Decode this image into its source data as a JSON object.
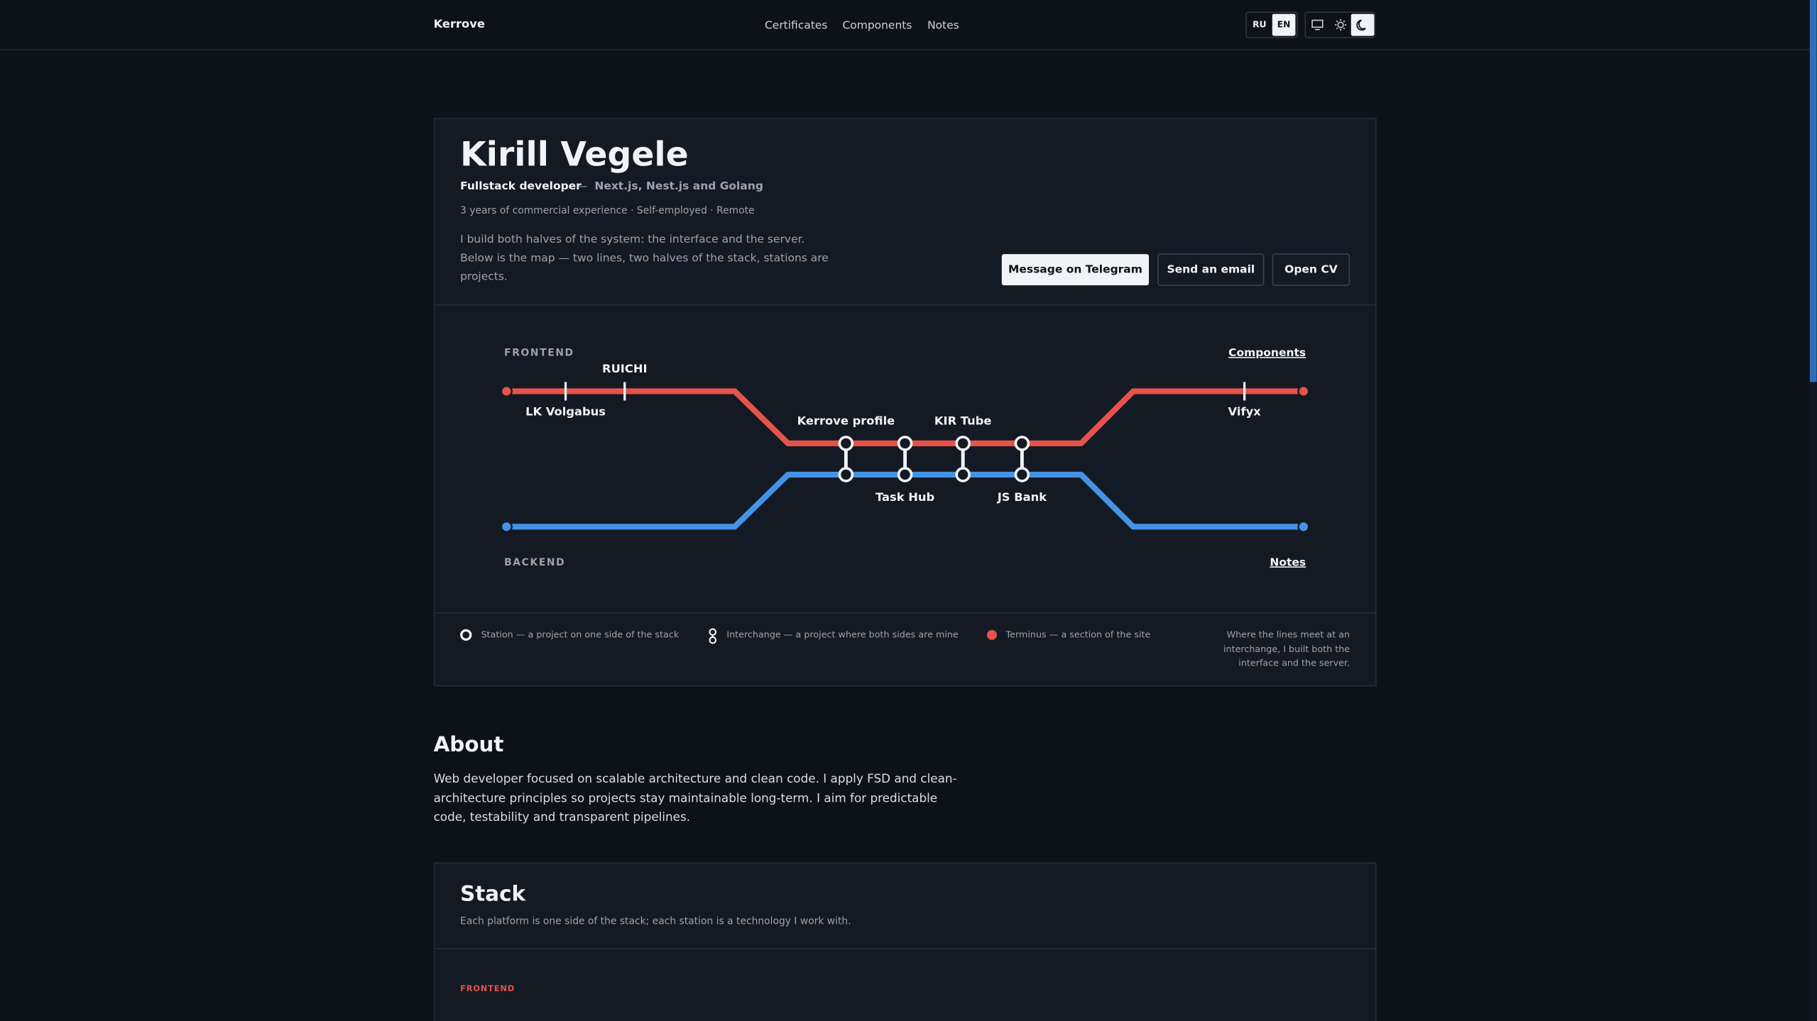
{
  "nav": {
    "brand": "Kerrove",
    "links": [
      "Certificates",
      "Components",
      "Notes"
    ],
    "languages": [
      "RU",
      "EN"
    ]
  },
  "hero": {
    "name": "Kirill Vegele",
    "role": "Fullstack developer",
    "separator": "—",
    "tech": "Next.js, Nest.js and Golang",
    "meta": "3 years of commercial experience · Self-employed · Remote",
    "intro": [
      "I build both halves of the system: the interface and the server.",
      "Below is the map — two lines, two halves of the stack, stations are",
      "projects."
    ],
    "buttons": [
      "Message on Telegram",
      "Send an email",
      "Open CV"
    ]
  },
  "map": {
    "frontend_label": "FRONTEND",
    "backend_label": "BACKEND",
    "frontend_link": "Components",
    "backend_link": "Notes",
    "frontend_stations": [
      "LK Volgabus",
      "RUICHI",
      "Vifyx"
    ],
    "interchanges_top": [
      "Kerrove profile",
      "KIR Tube"
    ],
    "interchanges_bottom": [
      "Task Hub",
      "JS Bank"
    ]
  },
  "legend": {
    "station": "Station — a project on one side of the stack",
    "interchange": "Interchange — a project where both sides are mine",
    "terminus": "Terminus — a section of the site",
    "note": [
      "Where the lines meet at an",
      "interchange, I built both the",
      "interface and the server."
    ]
  },
  "about": {
    "title": "About",
    "text": [
      "Web developer focused on scalable architecture and clean code. I apply FSD and clean-",
      "architecture principles so projects stay maintainable long-term. I aim for predictable",
      "code, testability and transparent pipelines."
    ]
  },
  "stack": {
    "title": "Stack",
    "subtitle": "Each platform is one side of the stack; each station is a technology I work with.",
    "first_section": "FRONTEND"
  }
}
